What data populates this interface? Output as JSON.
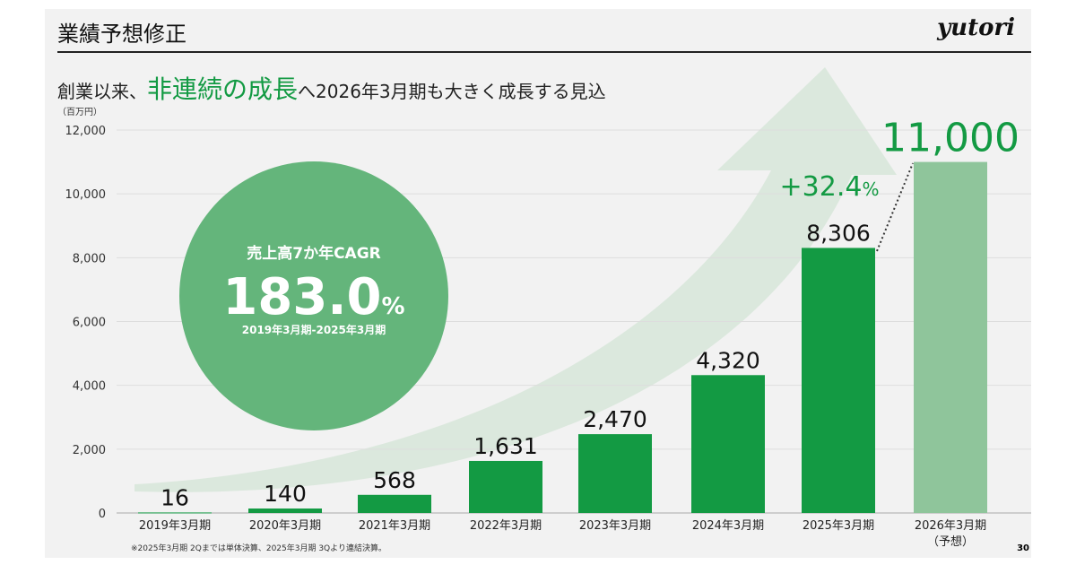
{
  "header": {
    "title": "業績予想修正",
    "logo": "yutori",
    "subtitle_pre": "創業以来、",
    "subtitle_highlight": "非連続の成長",
    "subtitle_post": "へ2026年3月期も大きく成長する見込"
  },
  "colors": {
    "bar": "#139a43",
    "forecast_bar": "#8fc59b",
    "circle": "#64b57b",
    "arrow": "#d7e6d9",
    "accent": "#139a43"
  },
  "chart_data": {
    "type": "bar",
    "unit_label": "（百万円）",
    "categories": [
      "2019年3月期",
      "2020年3月期",
      "2021年3月期",
      "2022年3月期",
      "2023年3月期",
      "2024年3月期",
      "2025年3月期",
      "2026年3月期"
    ],
    "category_sublabels": [
      "",
      "",
      "",
      "",
      "",
      "",
      "",
      "（予想）"
    ],
    "values": [
      16,
      140,
      568,
      1631,
      2470,
      4320,
      8306,
      11000
    ],
    "data_labels": [
      "16",
      "140",
      "568",
      "1,631",
      "2,470",
      "4,320",
      "8,306",
      "11,000"
    ],
    "forecast": [
      false,
      false,
      false,
      false,
      false,
      false,
      false,
      true
    ],
    "ylim": [
      0,
      12000
    ],
    "yticks": [
      0,
      2000,
      4000,
      6000,
      8000,
      10000,
      12000
    ],
    "ytick_labels": [
      "0",
      "2,000",
      "4,000",
      "6,000",
      "8,000",
      "10,000",
      "12,000"
    ],
    "grid": true,
    "annotations": {
      "growth": "+32.4",
      "growth_unit": "%"
    }
  },
  "cagr": {
    "label": "売上高7か年CAGR",
    "value": "183.0",
    "unit": "%",
    "period": "2019年3月期-2025年3月期"
  },
  "footnote": "※2025年3月期 2Qまでは単体決算、2025年3月期 3Qより連結決算。",
  "page_number": "30"
}
